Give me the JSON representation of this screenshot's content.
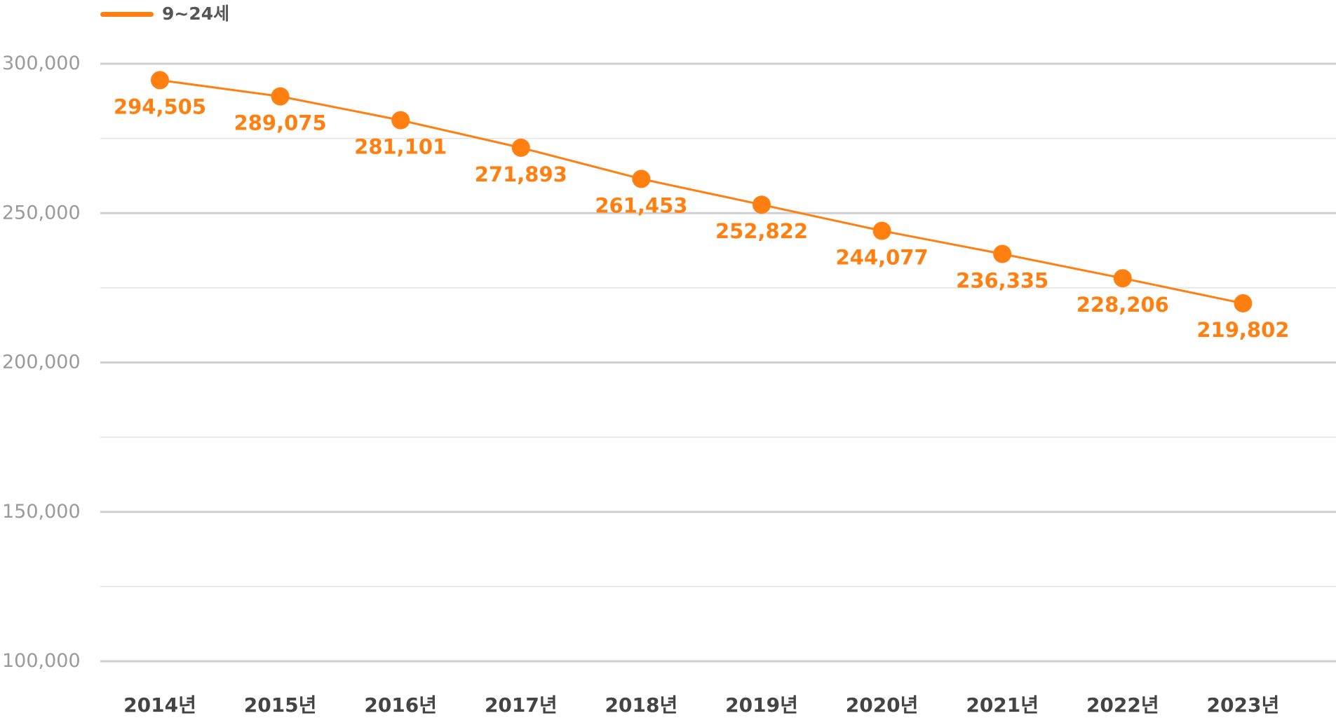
{
  "chart_data": {
    "type": "line",
    "categories": [
      "2014년",
      "2015년",
      "2016년",
      "2017년",
      "2018년",
      "2019년",
      "2020년",
      "2021년",
      "2022년",
      "2023년"
    ],
    "series": [
      {
        "name": "9~24세",
        "values": [
          294505,
          289075,
          281101,
          271893,
          261453,
          252822,
          244077,
          236335,
          228206,
          219802
        ],
        "labels": [
          "294,505",
          "289,075",
          "281,101",
          "271,893",
          "261,453",
          "252,822",
          "244,077",
          "236,335",
          "228,206",
          "219,802"
        ]
      }
    ],
    "ylim": [
      100000,
      300000
    ],
    "yticks": [
      100000,
      150000,
      200000,
      250000,
      300000
    ],
    "ytick_labels": [
      "100,000",
      "150,000",
      "200,000",
      "250,000",
      "300,000"
    ],
    "grid": true,
    "legend_position": "top-left",
    "colors": {
      "series": "#FF7F10",
      "grid_major": "#CFCFCF",
      "grid_minor": "#E2E2E2",
      "ytick_text": "#9A9A9A",
      "xtick_text": "#444444",
      "legend_text": "#555555"
    }
  }
}
